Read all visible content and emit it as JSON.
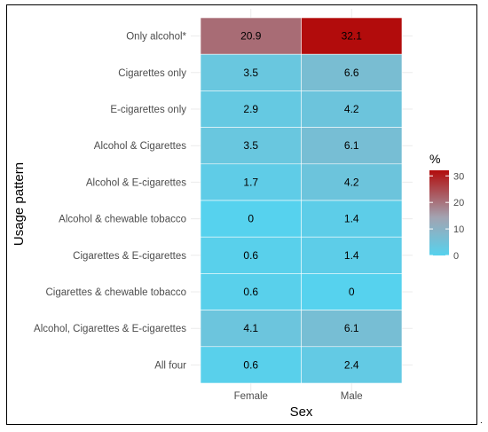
{
  "chart_data": {
    "type": "heatmap",
    "title": "",
    "xlabel": "Sex",
    "ylabel": "Usage pattern",
    "x_categories": [
      "Female",
      "Male"
    ],
    "y_categories": [
      "Only alcohol*",
      "Cigarettes only",
      "E-cigarettes only",
      "Alcohol & Cigarettes",
      "Alcohol & E-cigarettes",
      "Alcohol & chewable tobacco",
      "Cigarettes & E-cigarettes",
      "Cigarettes & chewable tobacco",
      "Alcohol, Cigarettes & E-cigarettes",
      "All four"
    ],
    "values": [
      [
        20.9,
        32.1
      ],
      [
        3.5,
        6.6
      ],
      [
        2.9,
        4.2
      ],
      [
        3.5,
        6.1
      ],
      [
        1.7,
        4.2
      ],
      [
        0,
        1.4
      ],
      [
        0.6,
        1.4
      ],
      [
        0.6,
        0
      ],
      [
        4.1,
        6.1
      ],
      [
        0.6,
        2.4
      ]
    ],
    "value_labels": [
      [
        "20.9",
        "32.1"
      ],
      [
        "3.5",
        "6.6"
      ],
      [
        "2.9",
        "4.2"
      ],
      [
        "3.5",
        "6.1"
      ],
      [
        "1.7",
        "4.2"
      ],
      [
        "0",
        "1.4"
      ],
      [
        "0.6",
        "1.4"
      ],
      [
        "0.6",
        "0"
      ],
      [
        "4.1",
        "6.1"
      ],
      [
        "0.6",
        "2.4"
      ]
    ],
    "legend": {
      "title": "%",
      "ticks": [
        0,
        10,
        20,
        30
      ],
      "range": [
        0,
        32.1
      ],
      "colors": {
        "low": "#56d2ee",
        "mid": "#a3a3b1",
        "high": "#b20c0c"
      },
      "position": "right"
    },
    "grid": true
  },
  "trailing_mark": "."
}
